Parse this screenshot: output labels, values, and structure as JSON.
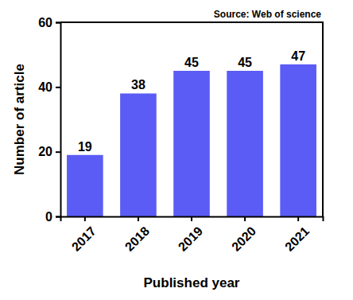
{
  "chart_data": {
    "type": "bar",
    "annotations": [
      "Source: Web of science"
    ],
    "x_label": "Published year",
    "y_label": "Number of article",
    "categories": [
      "2017",
      "2018",
      "2019",
      "2020",
      "2021"
    ],
    "values": [
      19,
      38,
      45,
      45,
      47
    ],
    "color": "#5b5bf5",
    "ylim": [
      0,
      60
    ],
    "yticks": [
      0,
      20,
      40,
      60
    ],
    "grid": false,
    "data_labels": true
  }
}
